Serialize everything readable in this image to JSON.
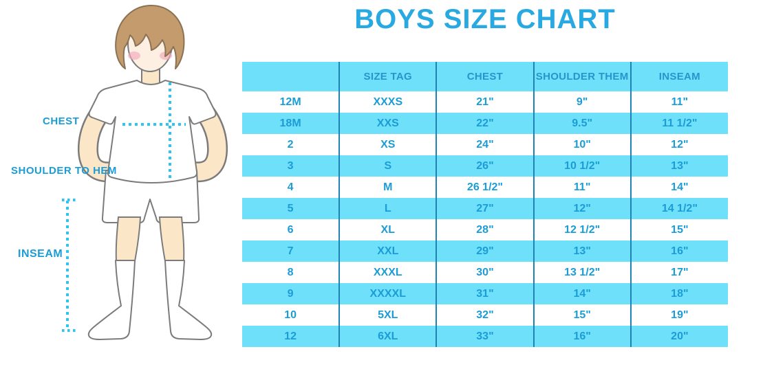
{
  "title": "BOYS SIZE CHART",
  "diagram": {
    "labels": {
      "chest": "CHEST",
      "shoulder_to_hem": "SHOULDER TO HEM",
      "inseam": "INSEAM"
    }
  },
  "chart_data": {
    "type": "table",
    "title": "BOYS SIZE CHART",
    "columns": [
      "",
      "SIZE TAG",
      "CHEST",
      "SHOULDER THEM",
      "INSEAM"
    ],
    "rows": [
      [
        "12M",
        "XXXS",
        "21\"",
        "9\"",
        "11\""
      ],
      [
        "18M",
        "XXS",
        "22\"",
        "9.5\"",
        "11 1/2\""
      ],
      [
        "2",
        "XS",
        "24\"",
        "10\"",
        "12\""
      ],
      [
        "3",
        "S",
        "26\"",
        "10 1/2\"",
        "13\""
      ],
      [
        "4",
        "M",
        "26 1/2\"",
        "11\"",
        "14\""
      ],
      [
        "5",
        "L",
        "27\"",
        "12\"",
        "14 1/2\""
      ],
      [
        "6",
        "XL",
        "28\"",
        "12 1/2\"",
        "15\""
      ],
      [
        "7",
        "XXL",
        "29\"",
        "13\"",
        "16\""
      ],
      [
        "8",
        "XXXL",
        "30\"",
        "13 1/2\"",
        "17\""
      ],
      [
        "9",
        "XXXXL",
        "31\"",
        "14\"",
        "18\""
      ],
      [
        "10",
        "5XL",
        "32\"",
        "15\"",
        "19\""
      ],
      [
        "12",
        "6XL",
        "33\"",
        "16\"",
        "20\""
      ]
    ],
    "layout": {
      "striped_rows": true,
      "stripe_color": "#6fe0fa",
      "header_background": "#6fe0fa",
      "column_divider_color": "#1e82b4"
    }
  },
  "colors": {
    "title_blue": "#29a9e1",
    "table_text_blue": "#1b9cd6",
    "row_cyan": "#6fe0fa",
    "divider_blue": "#1e82b4",
    "dotted_line_cyan": "#2fc3f2",
    "skin": "#fbe7c8",
    "face": "#fdf0e3",
    "hair": "#c49b6d",
    "blush": "#f3a8bb",
    "outline_gray": "#7b7b7b"
  }
}
